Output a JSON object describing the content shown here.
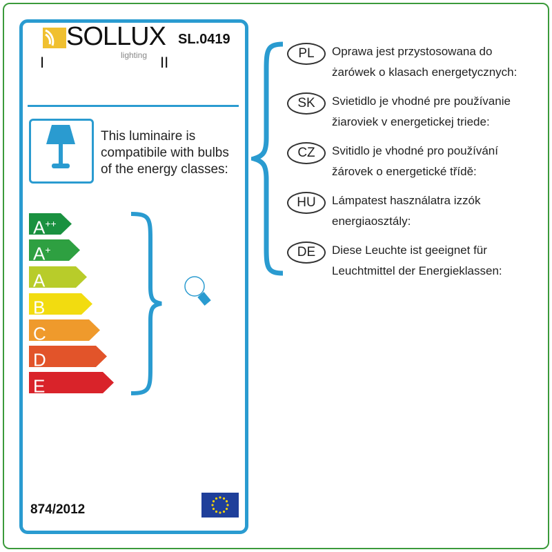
{
  "brand": {
    "name": "SOLLUX",
    "sub": "lighting",
    "marks": [
      "I",
      "II"
    ]
  },
  "product_code": "SL.0419",
  "compat_text": [
    "This luminaire is",
    "compatibile with bulbs",
    "of the energy classes:"
  ],
  "energy_classes": [
    {
      "label": "A",
      "sup": "++",
      "color": "#1a9140"
    },
    {
      "label": "A",
      "sup": "+",
      "color": "#2ea041"
    },
    {
      "label": "A",
      "sup": "",
      "color": "#b8cc2a"
    },
    {
      "label": "B",
      "sup": "",
      "color": "#f2dc10"
    },
    {
      "label": "C",
      "sup": "",
      "color": "#ef9a2c"
    },
    {
      "label": "D",
      "sup": "",
      "color": "#e2542a"
    },
    {
      "label": "E",
      "sup": "",
      "color": "#d9232a"
    }
  ],
  "regulation": "874/2012",
  "languages": [
    {
      "code": "PL",
      "lines": [
        "Oprawa jest przystosowana do",
        "żarówek o klasach energetycznych:"
      ]
    },
    {
      "code": "SK",
      "lines": [
        "Svietidlo je vhodné pre používanie",
        "žiaroviek v energetickej triede:"
      ]
    },
    {
      "code": "CZ",
      "lines": [
        "Svitidlo je vhodné pro používání",
        "žárovek o energetické třídě:"
      ]
    },
    {
      "code": "HU",
      "lines": [
        "Lámpatest használatra izzók",
        "energiaosztály:"
      ]
    },
    {
      "code": "DE",
      "lines": [
        "Diese Leuchte ist geeignet für",
        "Leuchtmittel der Energieklassen:"
      ]
    }
  ],
  "colors": {
    "accent": "#2a9bd0",
    "frame": "#3a9a3a",
    "logo": "#f0c030"
  }
}
